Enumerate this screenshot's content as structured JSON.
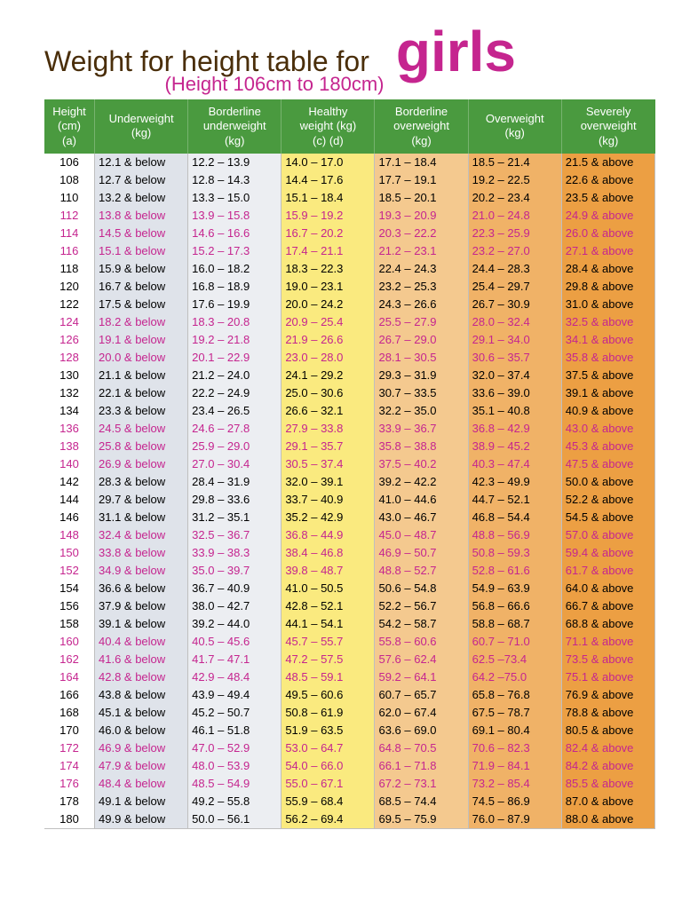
{
  "title": {
    "main": "Weight for height table for",
    "emph": "girls",
    "subtitle": "(Height 106cm to 180cm)",
    "main_color": "#4a2e0a",
    "emph_color": "#c5258f",
    "subtitle_color": "#c5258f"
  },
  "columns": [
    {
      "label": "Height\n(cm)\n(a)",
      "header_bg": "#4a9a3f",
      "body_bg": "#ffffff"
    },
    {
      "label": "Underweight\n(kg)",
      "header_bg": "#4a9a3f",
      "body_bg": "#dfe3ea"
    },
    {
      "label": "Borderline\nunderweight\n(kg)",
      "header_bg": "#4a9a3f",
      "body_bg": "#eceef2"
    },
    {
      "label": "Healthy\nweight (kg)\n(c)        (d)",
      "header_bg": "#4a9a3f",
      "body_bg": "#faea7f"
    },
    {
      "label": "Borderline\noverweight\n(kg)",
      "header_bg": "#4a9a3f",
      "body_bg": "#f4c98f"
    },
    {
      "label": "Overweight\n(kg)",
      "header_bg": "#4a9a3f",
      "body_bg": "#f0b267"
    },
    {
      "label": "Severely\noverweight\n(kg)",
      "header_bg": "#4a9a3f",
      "body_bg": "#ec9f43"
    }
  ],
  "row_colors": {
    "black": "#000000",
    "pink": "#c5258f"
  },
  "rows": [
    {
      "c": "black",
      "h": "106",
      "v": [
        "12.1 & below",
        "12.2 – 13.9",
        "14.0 – 17.0",
        "17.1 – 18.4",
        "18.5 – 21.4",
        "21.5 & above"
      ]
    },
    {
      "c": "black",
      "h": "108",
      "v": [
        "12.7 & below",
        "12.8 – 14.3",
        "14.4 – 17.6",
        "17.7 – 19.1",
        "19.2 – 22.5",
        "22.6 & above"
      ]
    },
    {
      "c": "black",
      "h": "110",
      "v": [
        "13.2 & below",
        "13.3 – 15.0",
        "15.1 – 18.4",
        "18.5 – 20.1",
        "20.2 – 23.4",
        "23.5 & above"
      ]
    },
    {
      "c": "pink",
      "h": "112",
      "v": [
        "13.8 & below",
        "13.9 – 15.8",
        "15.9 – 19.2",
        "19.3 – 20.9",
        "21.0 – 24.8",
        "24.9 & above"
      ]
    },
    {
      "c": "pink",
      "h": "114",
      "v": [
        "14.5 & below",
        "14.6 – 16.6",
        "16.7 – 20.2",
        "20.3 – 22.2",
        "22.3 – 25.9",
        "26.0 & above"
      ]
    },
    {
      "c": "pink",
      "h": "116",
      "v": [
        "15.1 & below",
        "15.2 – 17.3",
        "17.4 – 21.1",
        "21.2 – 23.1",
        "23.2 – 27.0",
        "27.1 & above"
      ]
    },
    {
      "c": "black",
      "h": "118",
      "v": [
        "15.9 & below",
        "16.0 – 18.2",
        "18.3 – 22.3",
        "22.4 – 24.3",
        "24.4 – 28.3",
        "28.4 & above"
      ]
    },
    {
      "c": "black",
      "h": "120",
      "v": [
        "16.7 & below",
        "16.8 – 18.9",
        "19.0 – 23.1",
        "23.2 – 25.3",
        "25.4 – 29.7",
        "29.8 & above"
      ]
    },
    {
      "c": "black",
      "h": "122",
      "v": [
        "17.5 & below",
        "17.6 – 19.9",
        "20.0 – 24.2",
        "24.3 – 26.6",
        "26.7 – 30.9",
        "31.0 & above"
      ]
    },
    {
      "c": "pink",
      "h": "124",
      "v": [
        "18.2 & below",
        "18.3 – 20.8",
        "20.9 – 25.4",
        "25.5 – 27.9",
        "28.0 – 32.4",
        "32.5 & above"
      ]
    },
    {
      "c": "pink",
      "h": "126",
      "v": [
        "19.1 & below",
        "19.2 – 21.8",
        "21.9 – 26.6",
        "26.7 – 29.0",
        "29.1 – 34.0",
        "34.1 & above"
      ]
    },
    {
      "c": "pink",
      "h": "128",
      "v": [
        "20.0 & below",
        "20.1 – 22.9",
        "23.0 – 28.0",
        "28.1 – 30.5",
        "30.6 – 35.7",
        "35.8 & above"
      ]
    },
    {
      "c": "black",
      "h": "130",
      "v": [
        "21.1 & below",
        "21.2 – 24.0",
        "24.1 – 29.2",
        "29.3 – 31.9",
        "32.0 – 37.4",
        "37.5 & above"
      ]
    },
    {
      "c": "black",
      "h": "132",
      "v": [
        "22.1 & below",
        "22.2 – 24.9",
        "25.0 – 30.6",
        "30.7 – 33.5",
        "33.6 – 39.0",
        "39.1 & above"
      ]
    },
    {
      "c": "black",
      "h": "134",
      "v": [
        "23.3 & below",
        "23.4 – 26.5",
        "26.6 – 32.1",
        "32.2 – 35.0",
        "35.1 – 40.8",
        "40.9 & above"
      ]
    },
    {
      "c": "pink",
      "h": "136",
      "v": [
        "24.5 & below",
        "24.6 – 27.8",
        "27.9 – 33.8",
        "33.9 – 36.7",
        "36.8 – 42.9",
        "43.0 & above"
      ]
    },
    {
      "c": "pink",
      "h": "138",
      "v": [
        "25.8 & below",
        "25.9 – 29.0",
        "29.1 – 35.7",
        "35.8 – 38.8",
        "38.9 – 45.2",
        "45.3 & above"
      ]
    },
    {
      "c": "pink",
      "h": "140",
      "v": [
        "26.9 & below",
        "27.0 – 30.4",
        "30.5 – 37.4",
        "37.5 – 40.2",
        "40.3 – 47.4",
        "47.5 & above"
      ]
    },
    {
      "c": "black",
      "h": "142",
      "v": [
        "28.3 & below",
        "28.4 – 31.9",
        "32.0 – 39.1",
        "39.2 – 42.2",
        "42.3 – 49.9",
        "50.0 & above"
      ]
    },
    {
      "c": "black",
      "h": "144",
      "v": [
        "29.7 & below",
        "29.8 – 33.6",
        "33.7 – 40.9",
        "41.0 – 44.6",
        "44.7 – 52.1",
        "52.2 & above"
      ]
    },
    {
      "c": "black",
      "h": "146",
      "v": [
        "31.1 & below",
        "31.2 – 35.1",
        "35.2 – 42.9",
        "43.0 – 46.7",
        "46.8 – 54.4",
        "54.5 & above"
      ]
    },
    {
      "c": "pink",
      "h": "148",
      "v": [
        "32.4 & below",
        "32.5 – 36.7",
        "36.8 – 44.9",
        "45.0 – 48.7",
        "48.8 – 56.9",
        "57.0 & above"
      ]
    },
    {
      "c": "pink",
      "h": "150",
      "v": [
        "33.8 & below",
        "33.9 – 38.3",
        "38.4 – 46.8",
        "46.9 – 50.7",
        "50.8 – 59.3",
        "59.4 & above"
      ]
    },
    {
      "c": "pink",
      "h": "152",
      "v": [
        "34.9 & below",
        "35.0 – 39.7",
        "39.8 – 48.7",
        "48.8 – 52.7",
        "52.8 – 61.6",
        "61.7 & above"
      ]
    },
    {
      "c": "black",
      "h": "154",
      "v": [
        "36.6 & below",
        "36.7 – 40.9",
        "41.0 – 50.5",
        "50.6 – 54.8",
        "54.9 – 63.9",
        "64.0 & above"
      ]
    },
    {
      "c": "black",
      "h": "156",
      "v": [
        "37.9 & below",
        "38.0 – 42.7",
        "42.8 – 52.1",
        "52.2 – 56.7",
        "56.8 – 66.6",
        "66.7 & above"
      ]
    },
    {
      "c": "black",
      "h": "158",
      "v": [
        "39.1 & below",
        "39.2 – 44.0",
        "44.1 – 54.1",
        "54.2 – 58.7",
        "58.8 – 68.7",
        "68.8 & above"
      ]
    },
    {
      "c": "pink",
      "h": "160",
      "v": [
        "40.4 & below",
        "40.5 – 45.6",
        "45.7 – 55.7",
        "55.8 – 60.6",
        "60.7 – 71.0",
        "71.1 & above"
      ]
    },
    {
      "c": "pink",
      "h": "162",
      "v": [
        "41.6 & below",
        "41.7 – 47.1",
        "47.2 – 57.5",
        "57.6 – 62.4",
        "62.5 –73.4",
        "73.5 & above"
      ]
    },
    {
      "c": "pink",
      "h": "164",
      "v": [
        "42.8 & below",
        "42.9 – 48.4",
        "48.5 – 59.1",
        "59.2 – 64.1",
        "64.2 –75.0",
        "75.1 & above"
      ]
    },
    {
      "c": "black",
      "h": "166",
      "v": [
        "43.8 & below",
        "43.9 – 49.4",
        "49.5 – 60.6",
        "60.7 – 65.7",
        "65.8 – 76.8",
        "76.9 & above"
      ]
    },
    {
      "c": "black",
      "h": "168",
      "v": [
        "45.1 & below",
        "45.2 – 50.7",
        "50.8 – 61.9",
        "62.0 – 67.4",
        "67.5 – 78.7",
        "78.8 & above"
      ]
    },
    {
      "c": "black",
      "h": "170",
      "v": [
        "46.0 & below",
        "46.1 – 51.8",
        "51.9 – 63.5",
        "63.6 – 69.0",
        "69.1 – 80.4",
        "80.5 & above"
      ]
    },
    {
      "c": "pink",
      "h": "172",
      "v": [
        "46.9 & below",
        "47.0 – 52.9",
        "53.0 – 64.7",
        "64.8 – 70.5",
        "70.6 – 82.3",
        "82.4 & above"
      ]
    },
    {
      "c": "pink",
      "h": "174",
      "v": [
        "47.9 & below",
        "48.0 – 53.9",
        "54.0 – 66.0",
        "66.1 – 71.8",
        "71.9 – 84.1",
        "84.2 & above"
      ]
    },
    {
      "c": "pink",
      "h": "176",
      "v": [
        "48.4 & below",
        "48.5 – 54.9",
        "55.0 – 67.1",
        "67.2 – 73.1",
        "73.2 – 85.4",
        "85.5 & above"
      ]
    },
    {
      "c": "black",
      "h": "178",
      "v": [
        "49.1 & below",
        "49.2 – 55.8",
        "55.9 – 68.4",
        "68.5 – 74.4",
        "74.5 – 86.9",
        "87.0 & above"
      ]
    },
    {
      "c": "black",
      "h": "180",
      "v": [
        "49.9 & below",
        "50.0 – 56.1",
        "56.2 – 69.4",
        "69.5 – 75.9",
        "76.0 – 87.9",
        "88.0 & above"
      ]
    }
  ]
}
